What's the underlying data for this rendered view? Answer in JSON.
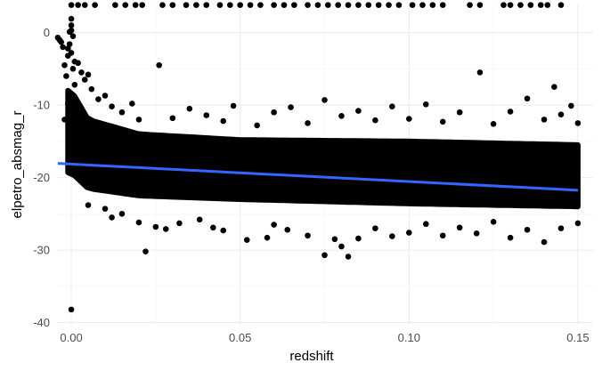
{
  "chart_data": {
    "type": "scatter",
    "title": "",
    "xlabel": "redshift",
    "ylabel": "elpetro_absmag_r",
    "xlim": [
      -0.0045,
      0.1545
    ],
    "ylim": [
      -40.3,
      4.0
    ],
    "x_ticks": [
      0.0,
      0.05,
      0.1,
      0.15
    ],
    "x_tick_labels": [
      "0.00",
      "0.05",
      "0.10",
      "0.15"
    ],
    "y_ticks": [
      -40,
      -30,
      -20,
      -10,
      0
    ],
    "y_tick_labels": [
      "-40",
      "-30",
      "-20",
      "-10",
      "0"
    ],
    "grid": true,
    "legend": "none",
    "point_color": "#000000",
    "trend_line_color": "#3366ff",
    "trend_line": {
      "type": "linear",
      "x": [
        -0.004,
        0.15
      ],
      "y": [
        -18.05,
        -21.75
      ]
    },
    "band": {
      "x_min": -0.001,
      "x_max": 0.15,
      "y_low": [
        [
          0.0,
          -19.3
        ],
        [
          0.005,
          -21.5
        ],
        [
          0.02,
          -22.5
        ],
        [
          0.05,
          -23.0
        ],
        [
          0.1,
          -23.6
        ],
        [
          0.15,
          -24.0
        ]
      ],
      "y_high": [
        [
          0.0,
          -8.0
        ],
        [
          0.005,
          -12.0
        ],
        [
          0.02,
          -14.0
        ],
        [
          0.05,
          -14.8
        ],
        [
          0.1,
          -15.0
        ],
        [
          0.15,
          -15.5
        ]
      ]
    },
    "points": [
      [
        -0.004,
        -0.7
      ],
      [
        -0.0035,
        -1.0
      ],
      [
        -0.003,
        -1.3
      ],
      [
        -0.0025,
        -2.0
      ],
      [
        -0.002,
        -4.5
      ],
      [
        -0.001,
        -2.2
      ],
      [
        -0.0005,
        -1.6
      ],
      [
        0.0,
        1.9
      ],
      [
        0.0,
        1.0
      ],
      [
        0.0,
        0.3
      ],
      [
        -0.0005,
        0.1
      ],
      [
        0.0005,
        -0.5
      ],
      [
        0.0,
        -2.8
      ],
      [
        -0.001,
        -3.2
      ],
      [
        0.001,
        -4.0
      ],
      [
        0.0005,
        -5.0
      ],
      [
        -0.0015,
        -6.0
      ],
      [
        0.001,
        -7.2
      ],
      [
        0.0,
        -8.5
      ],
      [
        -0.001,
        -9.8
      ],
      [
        0.0005,
        -10.8
      ],
      [
        -0.002,
        -12.0
      ],
      [
        0.001,
        -12.5
      ],
      [
        0.0,
        -38.2
      ],
      [
        0.002,
        -4.2
      ],
      [
        0.003,
        -5.5
      ],
      [
        0.004,
        -6.5
      ],
      [
        0.005,
        -5.8
      ],
      [
        0.006,
        -7.8
      ],
      [
        0.008,
        -9.2
      ],
      [
        0.01,
        -8.7
      ],
      [
        0.012,
        -10.2
      ],
      [
        0.015,
        -11.0
      ],
      [
        0.018,
        -9.8
      ],
      [
        0.02,
        -12.0
      ],
      [
        0.026,
        -4.5
      ],
      [
        0.03,
        -11.8
      ],
      [
        0.035,
        -10.5
      ],
      [
        0.04,
        -11.4
      ],
      [
        0.045,
        -12.2
      ],
      [
        0.048,
        -10.1
      ],
      [
        0.055,
        -12.8
      ],
      [
        0.06,
        -11.0
      ],
      [
        0.065,
        -10.3
      ],
      [
        0.07,
        -12.5
      ],
      [
        0.075,
        -9.3
      ],
      [
        0.08,
        -11.5
      ],
      [
        0.085,
        -10.8
      ],
      [
        0.09,
        -12.1
      ],
      [
        0.095,
        -10.2
      ],
      [
        0.1,
        -11.9
      ],
      [
        0.105,
        -9.9
      ],
      [
        0.11,
        -12.3
      ],
      [
        0.115,
        -11.0
      ],
      [
        0.121,
        -5.5
      ],
      [
        0.125,
        -12.6
      ],
      [
        0.13,
        -10.9
      ],
      [
        0.135,
        -9.1
      ],
      [
        0.14,
        -12.0
      ],
      [
        0.143,
        -7.5
      ],
      [
        0.145,
        -11.3
      ],
      [
        0.148,
        -10.1
      ],
      [
        0.15,
        -12.5
      ],
      [
        0.005,
        -23.8
      ],
      [
        0.01,
        -24.3
      ],
      [
        0.012,
        -25.5
      ],
      [
        0.015,
        -25.0
      ],
      [
        0.02,
        -26.2
      ],
      [
        0.022,
        -30.2
      ],
      [
        0.025,
        -26.8
      ],
      [
        0.028,
        -27.1
      ],
      [
        0.032,
        -26.3
      ],
      [
        0.038,
        -25.8
      ],
      [
        0.042,
        -26.9
      ],
      [
        0.045,
        -27.3
      ],
      [
        0.052,
        -28.6
      ],
      [
        0.058,
        -28.3
      ],
      [
        0.06,
        -26.5
      ],
      [
        0.064,
        -27.2
      ],
      [
        0.07,
        -28.0
      ],
      [
        0.075,
        -30.7
      ],
      [
        0.078,
        -28.5
      ],
      [
        0.08,
        -29.5
      ],
      [
        0.082,
        -30.9
      ],
      [
        0.085,
        -28.4
      ],
      [
        0.09,
        -27.0
      ],
      [
        0.095,
        -28.1
      ],
      [
        0.1,
        -27.6
      ],
      [
        0.105,
        -26.4
      ],
      [
        0.11,
        -28.0
      ],
      [
        0.115,
        -26.9
      ],
      [
        0.12,
        -27.7
      ],
      [
        0.125,
        -26.1
      ],
      [
        0.13,
        -28.3
      ],
      [
        0.135,
        -27.2
      ],
      [
        0.14,
        -28.9
      ],
      [
        0.145,
        -27.0
      ],
      [
        0.15,
        -26.3
      ]
    ],
    "top_edge_points": {
      "y": 3.8,
      "x": [
        0.0,
        0.002,
        0.004,
        0.007,
        0.013,
        0.016,
        0.019,
        0.021,
        0.027,
        0.03,
        0.034,
        0.037,
        0.04,
        0.044,
        0.047,
        0.05,
        0.053,
        0.056,
        0.06,
        0.063,
        0.066,
        0.07,
        0.073,
        0.076,
        0.079,
        0.082,
        0.085,
        0.088,
        0.091,
        0.094,
        0.097,
        0.101,
        0.104,
        0.107,
        0.11,
        0.118,
        0.121,
        0.128,
        0.13,
        0.133,
        0.136,
        0.139,
        0.141,
        0.145
      ]
    }
  }
}
